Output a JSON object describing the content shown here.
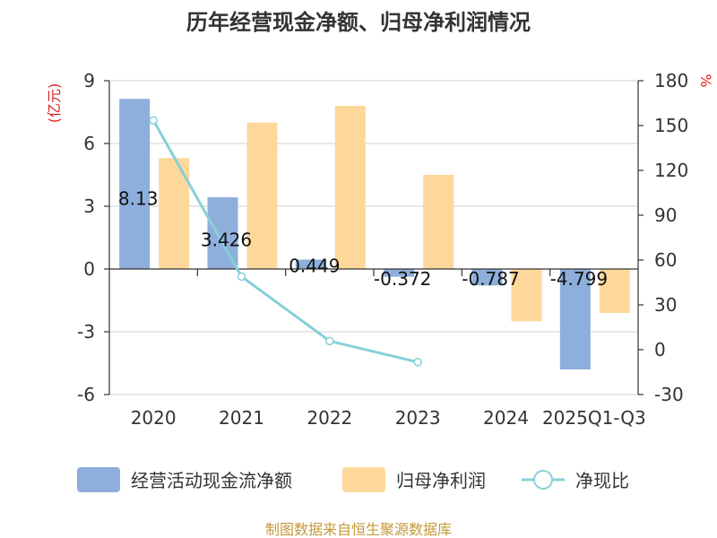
{
  "chart_data": {
    "type": "bar",
    "title": "历年经营现金净额、归母净利润情况",
    "left_axis_unit": "(亿元)",
    "right_axis_unit": "%",
    "categories": [
      "2020",
      "2021",
      "2022",
      "2023",
      "2024",
      "2025Q1-Q3"
    ],
    "ylim": [
      -6,
      9
    ],
    "y_ticks": [
      9,
      6,
      3,
      0,
      -3,
      -6
    ],
    "y2lim": [
      -30,
      180
    ],
    "y2_ticks": [
      180,
      150,
      120,
      90,
      60,
      30,
      0,
      -30
    ],
    "series": [
      {
        "name": "经营活动现金流净额",
        "kind": "bar",
        "axis": "left",
        "color": "#8eaedc",
        "values": [
          8.13,
          3.426,
          0.449,
          -0.372,
          -0.787,
          -4.799
        ],
        "labels": [
          "8.13",
          "3.426",
          "0.449",
          "-0.372",
          "-0.787",
          "-4.799"
        ]
      },
      {
        "name": "归母净利润",
        "kind": "bar",
        "axis": "left",
        "color": "#fdd89a",
        "values": [
          5.3,
          7.0,
          7.8,
          4.5,
          -2.5,
          -2.1
        ]
      },
      {
        "name": "净现比",
        "kind": "line",
        "axis": "right",
        "color": "#86d0d8",
        "values": [
          153.4,
          48.9,
          5.8,
          -8.3,
          null,
          null
        ]
      }
    ],
    "source": "制图数据来自恒生聚源数据库"
  }
}
